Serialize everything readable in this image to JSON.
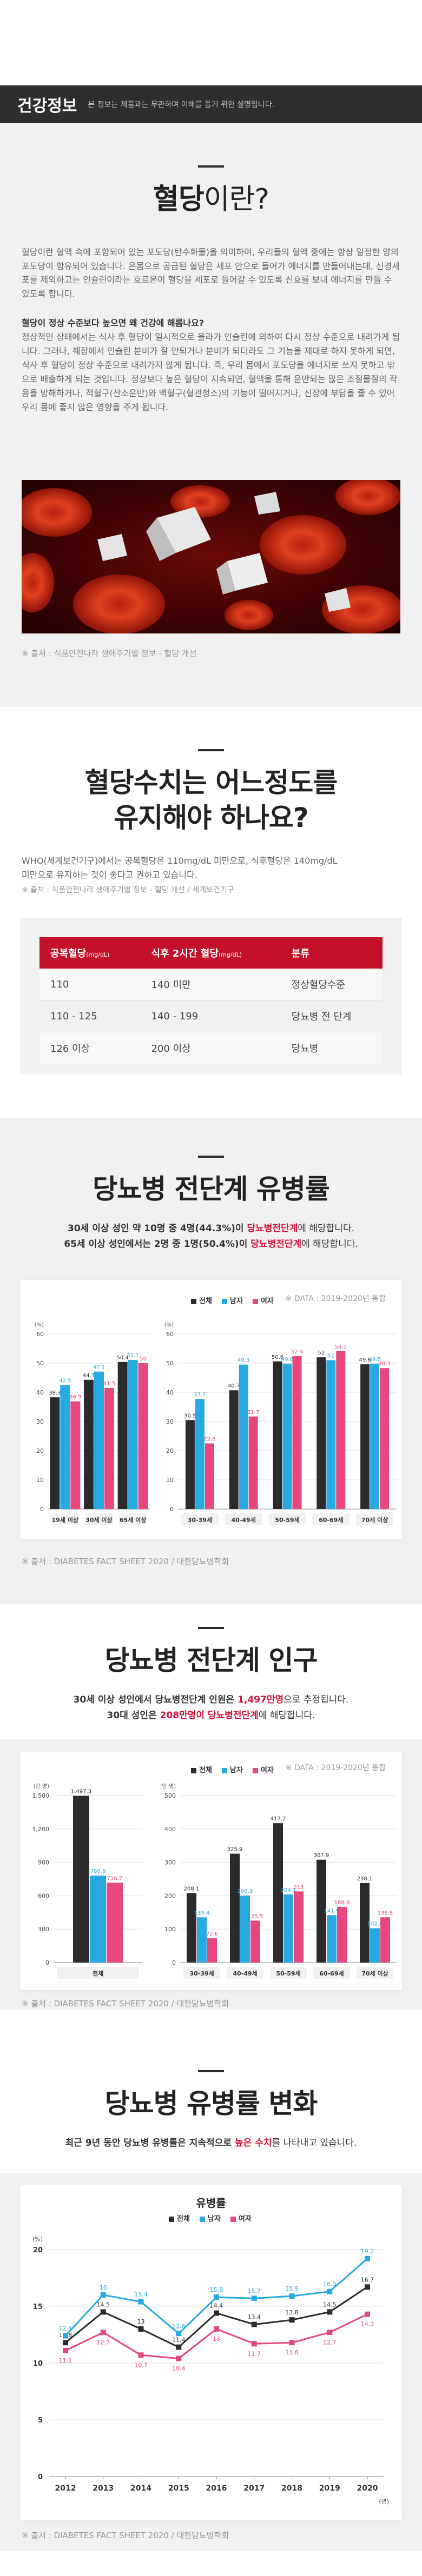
{
  "header": {
    "title": "건강정보",
    "subtitle": "본 정보는 제품과는 무관하며 이해를 돕기 위한 설명입니다."
  },
  "section1": {
    "title_bold": "혈당",
    "title_light": "이란?",
    "para1": "혈당이란 혈액 속에 포함되어 있는 포도당(탄수화물)을 의미하며, 우리들의 혈액 중에는 항상 일정한 양의 포도당이 함유되어 있습니다. 온몸으로 공급된 혈당은 세포 안으로 들어가 에너지를 만들어내는데, 신경세포를 제외하고는 인슐린이라는 호르몬이 혈당을 세포로 들어갈 수 있도록 신호를 보내 에너지를 만들 수 있도록 합니다.",
    "question": "혈당이 정상 수준보다 높으면 왜 건강에 해롭나요?",
    "para2": "정상적인 상태에서는 식사 후 혈당이 일시적으로 올라가 인슐린에 의하여 다시 정상 수준으로 내려가게 됩니다. 그러나, 췌장에서 인슐린 분비가 잘 안되거나 분비가 되더라도 그 기능을 제대로 하지 못하게 되면, 식사 후 혈당이 정상 수준으로 내려가지 않게 됩니다. 즉, 우리 몸에서 포도당을 에너지로 쓰지 못하고 밖으로 배출하게 되는 것입니다. 정상보다 높은 혈당이 지속되면, 혈액을 통해 운반되는 많은 조절물질의 작용을 방해하거나, 적혈구(산소운반)와 백혈구(혈관청소)의 기능이 떨어지거나, 신장에 부담을 줄 수 있어 우리 몸에 좋지 않은 영향을 주게 됩니다.",
    "source": "※ 출처 : 식품안전나라 생애주기별 정보 - 혈당 개선"
  },
  "section2": {
    "title_line1": "혈당수치는 어느정도를",
    "title_line2": "유지해야 하나요?",
    "para_line1": "WHO(세계보건기구)에서는 공복혈당은 110mg/dL 미만으로, 식후혈당은 140mg/dL",
    "para_line2": "미만으로 유지하는 것이 좋다고 권하고 있습니다.",
    "source": "※ 출처 : 식품안전나라 생애주기별 정보 - 혈당 개선 / 세계보건기구",
    "table": {
      "headers": [
        {
          "label": "공복혈당",
          "unit": "(mg/dL)"
        },
        {
          "label": "식후 2시간 혈당",
          "unit": "(mg/dL)"
        },
        {
          "label": "분류",
          "unit": ""
        }
      ],
      "rows": [
        [
          "110",
          "140 미만",
          "정상혈당수준"
        ],
        [
          "110 - 125",
          "140 - 199",
          "당뇨병 전 단계"
        ],
        [
          "126 이상",
          "200 이상",
          "당뇨병"
        ]
      ]
    }
  },
  "section3": {
    "title": "당뇨병 전단계 유병률",
    "line1_pre": "30세 이상 성인 약 10명 중 4명(44.3%)이 ",
    "line1_hl": "당뇨병전단계",
    "line1_post": "에 해당합니다.",
    "line2_pre": "65세 이상 성인에서는 2명 중 1명(50.4%)이 ",
    "line2_hl": "당뇨병전단계",
    "line2_post": "에 해당합니다.",
    "data_note": "※ DATA : 2019-2020년 통합",
    "source": "※ 출처 : DIABETES FACT SHEET 2020 / 대한당뇨병학회"
  },
  "section4": {
    "title": "당뇨병 전단계 인구",
    "line1_pre": "30세 이상 성인에서 당뇨병전단계 인원은 ",
    "line1_hl": "1,497만명",
    "line1_post": "으로 추정됩니다.",
    "line2_pre": "30대 성인은 ",
    "line2_hl": "208만명이 당뇨병전단계",
    "line2_post": "에 해당합니다.",
    "data_note": "※ DATA : 2019-2020년 통합",
    "source": "※ 출처 : DIABETES FACT SHEET 2020 / 대한당뇨병학회"
  },
  "section5": {
    "title": "당뇨병 유병률 변화",
    "line_pre": "최근 9년 동안 당뇨병 유병률은 지속적으로 ",
    "line_hl": "높은 수치",
    "line_post": "를 나타내고 있습니다.",
    "source": "※ 출처 : DIABETES FACT SHEET 2020 / 대한당뇨병학회"
  },
  "colors": {
    "total": "#2b2b2b",
    "male": "#27a9e1",
    "female": "#e6477d",
    "accent": "#c3112b"
  },
  "legend": {
    "total": "전체",
    "male": "남자",
    "female": "여자"
  },
  "chart_data": [
    {
      "type": "bar",
      "title": "",
      "ylabel": "(%)",
      "ylim": [
        0,
        60
      ],
      "categories": [
        "19세 이상",
        "30세 이상",
        "65세 이상"
      ],
      "series": [
        {
          "name": "전체",
          "values": [
            38.3,
            44.3,
            50.4
          ]
        },
        {
          "name": "남자",
          "values": [
            42.5,
            47.1,
            51.1
          ]
        },
        {
          "name": "여자",
          "values": [
            36.9,
            41.5,
            50.0
          ]
        }
      ]
    },
    {
      "type": "bar",
      "title": "",
      "ylabel": "(%)",
      "ylim": [
        0,
        60
      ],
      "categories": [
        "30-39세",
        "40-49세",
        "50-59세",
        "60-69세",
        "70세 이상"
      ],
      "series": [
        {
          "name": "전체",
          "values": [
            30.5,
            40.7,
            50.6,
            52.0,
            49.6
          ]
        },
        {
          "name": "남자",
          "values": [
            37.7,
            49.5,
            49.8,
            51.0,
            49.8
          ]
        },
        {
          "name": "여자",
          "values": [
            22.5,
            31.7,
            52.4,
            54.1,
            48.3
          ]
        }
      ]
    },
    {
      "type": "bar",
      "title": "",
      "ylabel": "(만 명)",
      "ylim": [
        0,
        1500
      ],
      "categories": [
        "전체"
      ],
      "series": [
        {
          "name": "전체",
          "values": [
            1497.3
          ]
        },
        {
          "name": "남자",
          "values": [
            780.6
          ]
        },
        {
          "name": "여자",
          "values": [
            716.7
          ]
        }
      ]
    },
    {
      "type": "bar",
      "title": "",
      "ylabel": "(만 명)",
      "ylim": [
        0,
        500
      ],
      "categories": [
        "30-39세",
        "40-49세",
        "50-59세",
        "60-69세",
        "70세 이상"
      ],
      "series": [
        {
          "name": "전체",
          "values": [
            208.1,
            325.9,
            417.2,
            307.9,
            238.1
          ]
        },
        {
          "name": "남자",
          "values": [
            135.4,
            200.3,
            204.1,
            141.9,
            102.6
          ]
        },
        {
          "name": "여자",
          "values": [
            72.6,
            125.5,
            213.0,
            166.9,
            135.5
          ]
        }
      ]
    },
    {
      "type": "line",
      "title": "유병률",
      "ylabel": "(%)",
      "xlabel": "(년)",
      "ylim": [
        0,
        20
      ],
      "x": [
        "2012",
        "2013",
        "2014",
        "2015",
        "2016",
        "2017",
        "2018",
        "2019",
        "2020"
      ],
      "series": [
        {
          "name": "전체",
          "values": [
            11.8,
            14.5,
            13.0,
            11.4,
            14.4,
            13.4,
            13.8,
            14.5,
            16.7
          ]
        },
        {
          "name": "남자",
          "values": [
            12.4,
            16.0,
            15.4,
            12.6,
            15.8,
            15.7,
            15.9,
            16.3,
            19.2
          ]
        },
        {
          "name": "여자",
          "values": [
            11.1,
            12.7,
            10.7,
            10.4,
            13.0,
            11.7,
            11.8,
            12.7,
            14.3
          ]
        }
      ]
    }
  ]
}
